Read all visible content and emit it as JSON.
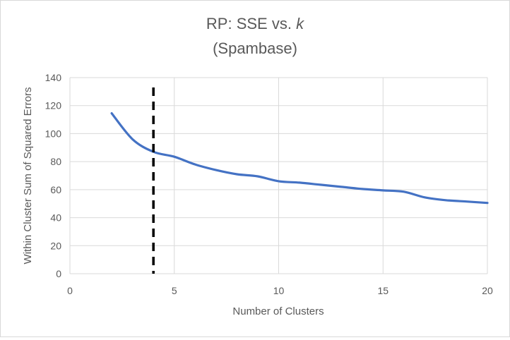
{
  "chart_data": {
    "type": "line",
    "title": "RP: SSE vs. ",
    "title_italic": "k",
    "subtitle": "(Spambase)",
    "xlabel": "Number of Clusters",
    "ylabel": "Within Cluster Sum of Squared Errors",
    "xlim": [
      0,
      20
    ],
    "ylim": [
      0,
      140
    ],
    "x_ticks": [
      "0",
      "5",
      "10",
      "15",
      "20"
    ],
    "y_ticks": [
      "0",
      "20",
      "40",
      "60",
      "80",
      "100",
      "120",
      "140"
    ],
    "grid": true,
    "legend": "none",
    "series": [
      {
        "color": "#4472C4",
        "x": [
          2,
          3,
          4,
          5,
          6,
          7,
          8,
          9,
          10,
          11,
          12,
          13,
          14,
          15,
          16,
          17,
          18,
          19,
          20
        ],
        "values": [
          114.5,
          96,
          87,
          83.5,
          78,
          74,
          71,
          69.5,
          66,
          65,
          63.5,
          62,
          60.5,
          59.5,
          58.5,
          54.5,
          52.5,
          51.5,
          50.5
        ]
      }
    ],
    "vertical_marker": {
      "x": 4,
      "style": "dashed",
      "color": "#000000"
    }
  }
}
